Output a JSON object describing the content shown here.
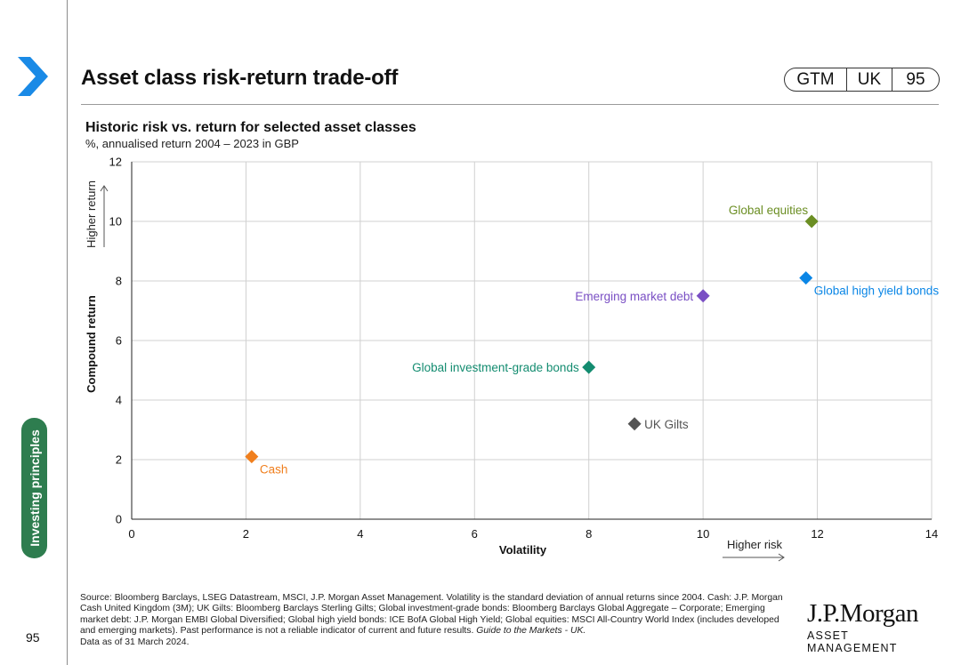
{
  "header": {
    "title": "Asset class risk-return trade-off",
    "badge": [
      "GTM",
      "UK",
      "95"
    ]
  },
  "sidebar": {
    "tab_label": "Investing principles",
    "page_number": "95"
  },
  "chart_data": {
    "type": "scatter",
    "title": "Historic risk vs. return for selected asset classes",
    "subtitle": "%, annualised return 2004 – 2023 in GBP",
    "xlabel": "Volatility",
    "ylabel": "Compound return",
    "xlim": [
      0,
      14
    ],
    "ylim": [
      0,
      12
    ],
    "x_ticks": [
      0,
      2,
      4,
      6,
      8,
      10,
      12,
      14
    ],
    "y_ticks": [
      0,
      2,
      4,
      6,
      8,
      10,
      12
    ],
    "grid": true,
    "annotations": {
      "higher_return": "Higher return",
      "higher_risk": "Higher risk"
    },
    "points": [
      {
        "name": "Cash",
        "x": 2.1,
        "y": 2.1,
        "color": "#f07f1e",
        "label_pos": "below-right"
      },
      {
        "name": "UK Gilts",
        "x": 8.8,
        "y": 3.2,
        "color": "#545454",
        "label_pos": "right"
      },
      {
        "name": "Global investment-grade bonds",
        "x": 8.0,
        "y": 5.1,
        "color": "#138c70",
        "label_pos": "left"
      },
      {
        "name": "Emerging market debt",
        "x": 10.0,
        "y": 7.5,
        "color": "#7a4fc4",
        "label_pos": "left"
      },
      {
        "name": "Global high yield bonds",
        "x": 11.8,
        "y": 8.1,
        "color": "#0a86e6",
        "label_pos": "below-right"
      },
      {
        "name": "Global equities",
        "x": 11.9,
        "y": 10.0,
        "color": "#6b8e23",
        "label_pos": "above-left"
      }
    ]
  },
  "footer": {
    "source_main": "Source: Bloomberg Barclays, LSEG Datastream, MSCI, J.P. Morgan Asset Management. Volatility is the standard deviation of annual returns since 2004. Cash: J.P. Morgan Cash United Kingdom (3M); UK Gilts: Bloomberg Barclays Sterling Gilts; Global investment-grade bonds: Bloomberg Barclays Global Aggregate – Corporate; Emerging market debt: J.P. Morgan EMBI Global Diversified; Global high yield bonds: ICE BofA Global High Yield; Global equities: MSCI All-Country World Index (includes developed and emerging markets). Past performance is not a reliable indicator of current and future results.",
    "source_guide": "Guide to the Markets - UK.",
    "source_date": "Data as of 31 March 2024.",
    "logo_top": "J.P.Morgan",
    "logo_bottom": "ASSET MANAGEMENT"
  },
  "colors": {
    "accent_green": "#2e7d4f",
    "chevron_blue": "#1a8ae6"
  }
}
